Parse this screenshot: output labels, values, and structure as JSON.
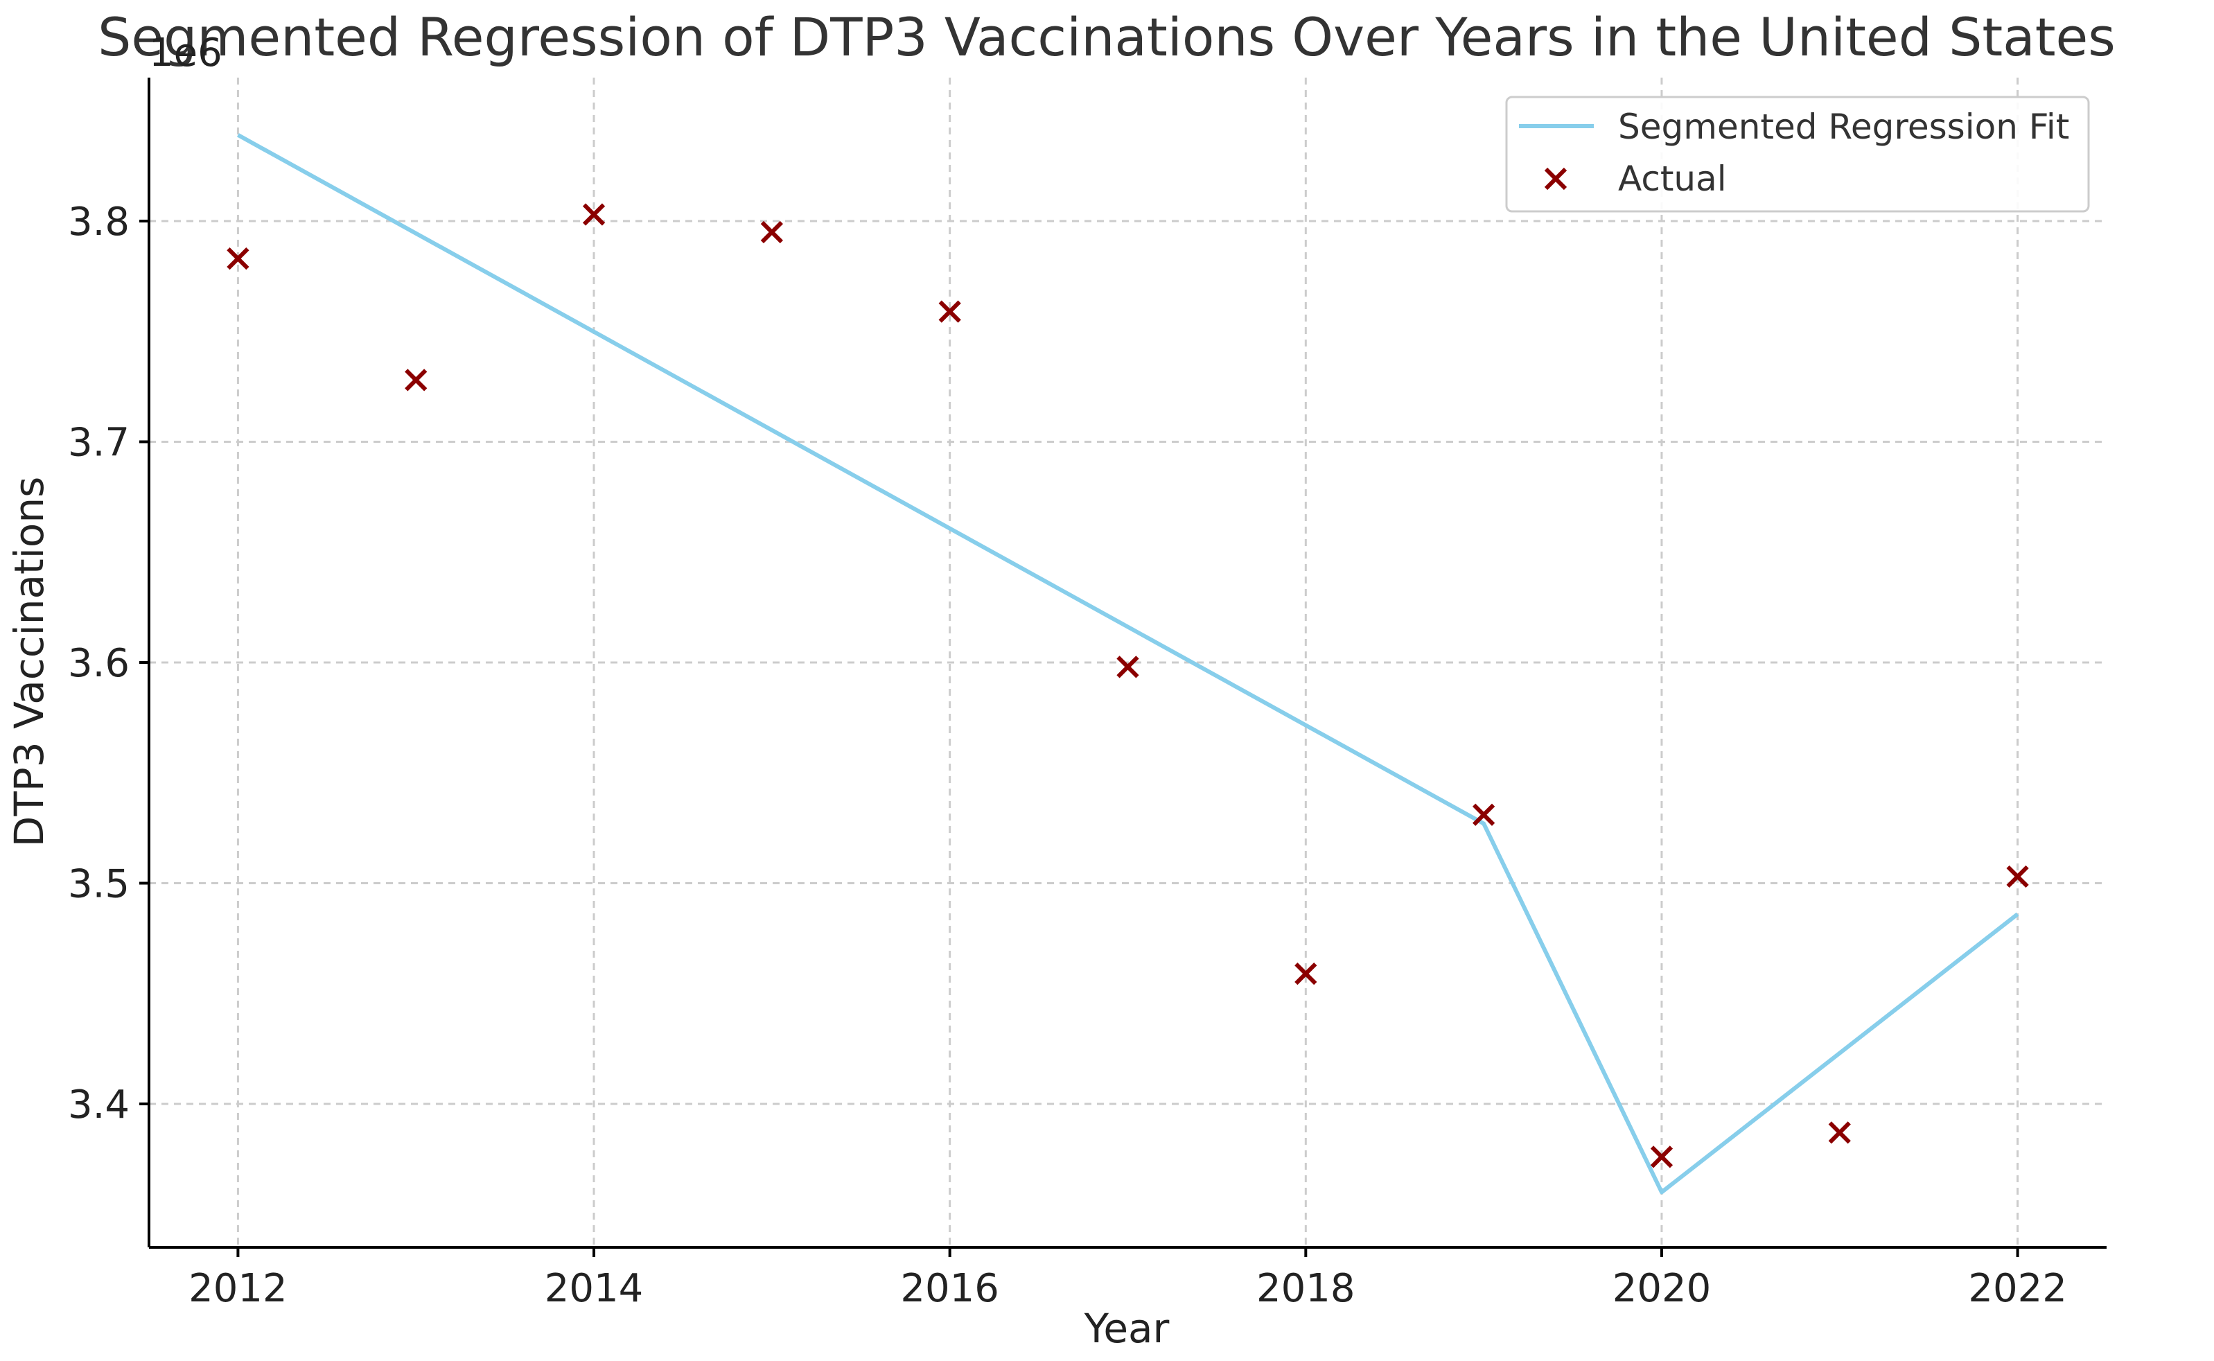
{
  "chart_data": {
    "type": "line",
    "title": "Segmented Regression of DTP3 Vaccinations Over Years in the United States",
    "xlabel": "Year",
    "ylabel": "DTP3 Vaccinations",
    "offset_label": "1e6",
    "xlim": [
      2011.5,
      2022.5
    ],
    "ylim": [
      3.335,
      3.865
    ],
    "x_ticks": [
      2012,
      2014,
      2016,
      2018,
      2020,
      2022
    ],
    "y_ticks": [
      3.4,
      3.5,
      3.6,
      3.7,
      3.8
    ],
    "y_tick_labels": [
      "3.4",
      "3.5",
      "3.6",
      "3.7",
      "3.8"
    ],
    "grid": true,
    "legend_position": "top-right",
    "series": [
      {
        "name": "Segmented Regression Fit",
        "kind": "line",
        "color": "#87CEEB",
        "x": [
          2012,
          2019,
          2020,
          2022
        ],
        "values": [
          3.839,
          3.527,
          3.36,
          3.486
        ]
      },
      {
        "name": "Actual",
        "kind": "scatter",
        "marker": "x",
        "color": "#8B0000",
        "x": [
          2012,
          2013,
          2014,
          2015,
          2016,
          2017,
          2018,
          2019,
          2020,
          2021,
          2022
        ],
        "values": [
          3.783,
          3.728,
          3.803,
          3.795,
          3.759,
          3.598,
          3.459,
          3.531,
          3.376,
          3.387,
          3.503
        ]
      }
    ]
  }
}
